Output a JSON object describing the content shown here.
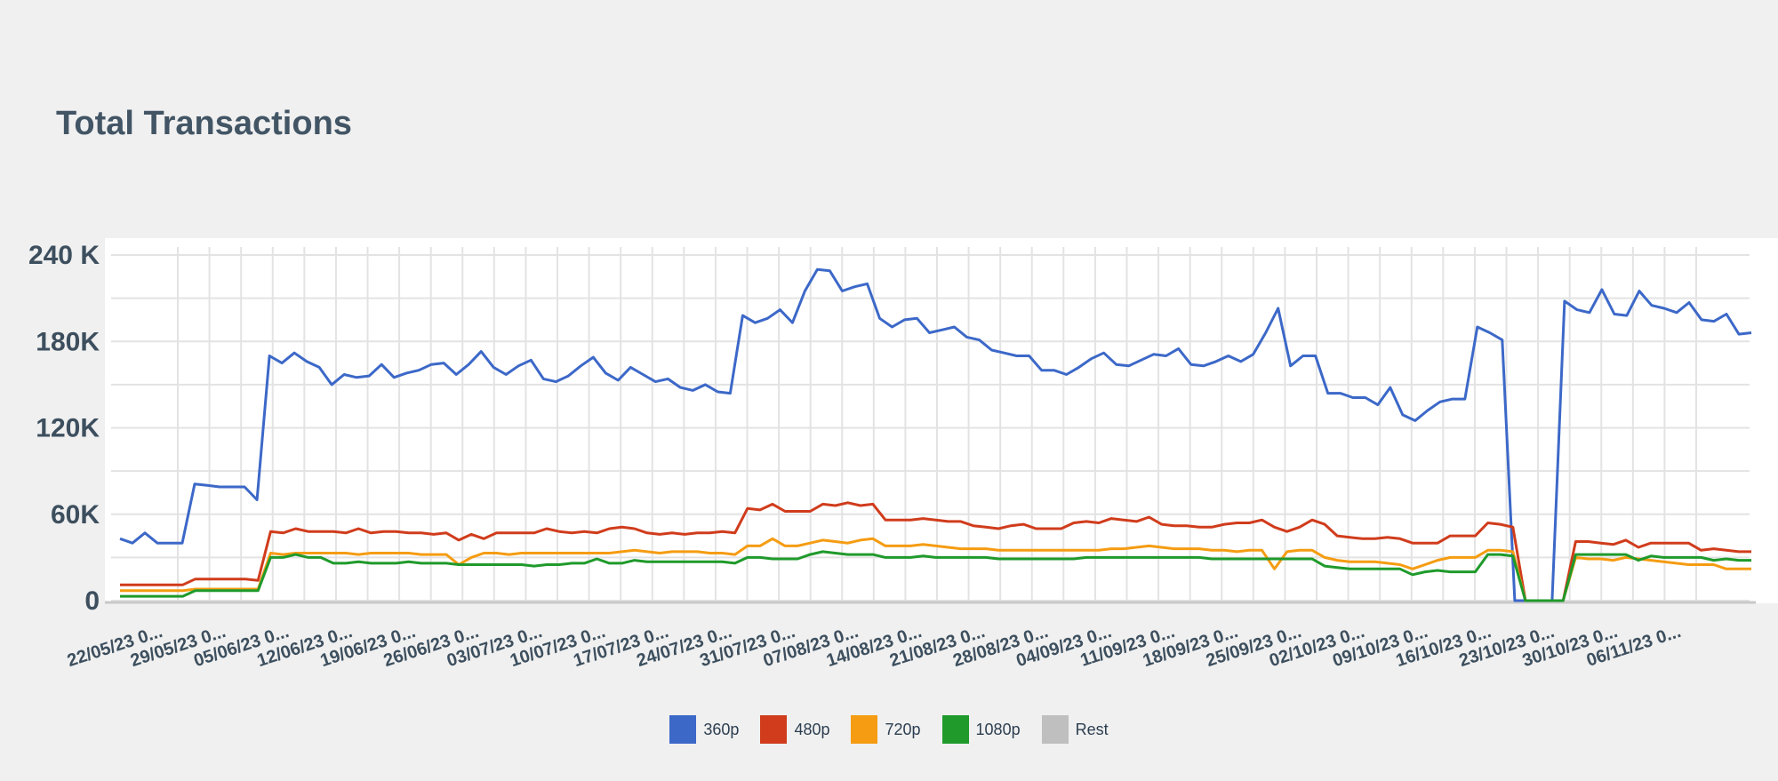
{
  "chart_data": {
    "type": "line",
    "title": "Total Transactions",
    "xlabel": "",
    "ylabel": "",
    "ylim": [
      0,
      240000
    ],
    "y_tick_labels": [
      "240 K",
      "180K",
      "120K",
      "60K",
      "0"
    ],
    "y_tick_values": [
      240000,
      180000,
      120000,
      60000,
      0
    ],
    "x_tick_labels": [
      "22/05/23 0...",
      "29/05/23 0...",
      "05/06/23 0...",
      "12/06/23 0...",
      "19/06/23 0...",
      "26/06/23 0...",
      "03/07/23 0...",
      "10/07/23 0...",
      "17/07/23 0...",
      "24/07/23 0...",
      "31/07/23 0...",
      "07/08/23 0...",
      "14/08/23 0...",
      "21/08/23 0...",
      "28/08/23 0...",
      "04/09/23 0...",
      "11/09/23 0...",
      "18/09/23 0...",
      "25/09/23 0...",
      "02/10/23 0...",
      "09/10/23 0...",
      "16/10/23 0...",
      "23/10/23 0...",
      "30/10/23 0...",
      "06/11/23 0..."
    ],
    "grid": true,
    "legend_position": "bottom",
    "series": [
      {
        "name": "360p",
        "color": "#3c68c8",
        "values": [
          43000,
          40000,
          47000,
          40000,
          40000,
          40000,
          81000,
          80000,
          79000,
          79000,
          79000,
          70000,
          170000,
          165000,
          172000,
          166000,
          162000,
          150000,
          157000,
          155000,
          156000,
          164000,
          155000,
          158000,
          160000,
          164000,
          165000,
          157000,
          164000,
          173000,
          162000,
          157000,
          163000,
          167000,
          154000,
          152000,
          156000,
          163000,
          169000,
          158000,
          153000,
          162000,
          157000,
          152000,
          154000,
          148000,
          146000,
          150000,
          145000,
          144000,
          198000,
          193000,
          196000,
          202000,
          193000,
          215000,
          230000,
          229000,
          215000,
          218000,
          220000,
          196000,
          190000,
          195000,
          196000,
          186000,
          188000,
          190000,
          183000,
          181000,
          174000,
          172000,
          170000,
          170000,
          160000,
          160000,
          157000,
          162000,
          168000,
          172000,
          164000,
          163000,
          167000,
          171000,
          170000,
          175000,
          164000,
          163000,
          166000,
          170000,
          166000,
          171000,
          186000,
          203000,
          163000,
          170000,
          170000,
          144000,
          144000,
          141000,
          141000,
          136000,
          148000,
          129000,
          125000,
          132000,
          138000,
          140000,
          140000,
          190000,
          186000,
          181000,
          0,
          0,
          0,
          0,
          208000,
          202000,
          200000,
          216000,
          199000,
          198000,
          215000,
          205000,
          203000,
          200000,
          207000,
          195000,
          194000,
          199000,
          185000,
          186000
        ]
      },
      {
        "name": "480p",
        "color": "#d03c1c",
        "values": [
          11000,
          11000,
          11000,
          11000,
          11000,
          11000,
          15000,
          15000,
          15000,
          15000,
          15000,
          14000,
          48000,
          47000,
          50000,
          48000,
          48000,
          48000,
          47000,
          50000,
          47000,
          48000,
          48000,
          47000,
          47000,
          46000,
          47000,
          42000,
          46000,
          43000,
          47000,
          47000,
          47000,
          47000,
          50000,
          48000,
          47000,
          48000,
          47000,
          50000,
          51000,
          50000,
          47000,
          46000,
          47000,
          46000,
          47000,
          47000,
          48000,
          47000,
          64000,
          63000,
          67000,
          62000,
          62000,
          62000,
          67000,
          66000,
          68000,
          66000,
          67000,
          56000,
          56000,
          56000,
          57000,
          56000,
          55000,
          55000,
          52000,
          51000,
          50000,
          52000,
          53000,
          50000,
          50000,
          50000,
          54000,
          55000,
          54000,
          57000,
          56000,
          55000,
          58000,
          53000,
          52000,
          52000,
          51000,
          51000,
          53000,
          54000,
          54000,
          56000,
          51000,
          48000,
          51000,
          56000,
          53000,
          45000,
          44000,
          43000,
          43000,
          44000,
          43000,
          40000,
          40000,
          40000,
          45000,
          45000,
          45000,
          54000,
          53000,
          51000,
          0,
          0,
          0,
          0,
          41000,
          41000,
          40000,
          39000,
          42000,
          37000,
          40000,
          40000,
          40000,
          40000,
          35000,
          36000,
          35000,
          34000,
          34000
        ]
      },
      {
        "name": "720p",
        "color": "#f59c12",
        "values": [
          7000,
          7000,
          7000,
          7000,
          7000,
          7000,
          8000,
          8000,
          8000,
          8000,
          8000,
          8000,
          33000,
          32000,
          33000,
          33000,
          33000,
          33000,
          33000,
          32000,
          33000,
          33000,
          33000,
          33000,
          32000,
          32000,
          32000,
          25000,
          30000,
          33000,
          33000,
          32000,
          33000,
          33000,
          33000,
          33000,
          33000,
          33000,
          33000,
          33000,
          34000,
          35000,
          34000,
          33000,
          34000,
          34000,
          34000,
          33000,
          33000,
          32000,
          38000,
          38000,
          43000,
          38000,
          38000,
          40000,
          42000,
          41000,
          40000,
          42000,
          43000,
          38000,
          38000,
          38000,
          39000,
          38000,
          37000,
          36000,
          36000,
          36000,
          35000,
          35000,
          35000,
          35000,
          35000,
          35000,
          35000,
          35000,
          35000,
          36000,
          36000,
          37000,
          38000,
          37000,
          36000,
          36000,
          36000,
          35000,
          35000,
          34000,
          35000,
          35000,
          22000,
          34000,
          35000,
          35000,
          30000,
          28000,
          27000,
          27000,
          27000,
          26000,
          25000,
          22000,
          25000,
          28000,
          30000,
          30000,
          30000,
          35000,
          35000,
          34000,
          0,
          0,
          0,
          0,
          30000,
          29000,
          29000,
          28000,
          30000,
          29000,
          28000,
          27000,
          26000,
          25000,
          25000,
          25000,
          22000,
          22000,
          22000
        ]
      },
      {
        "name": "1080p",
        "color": "#1f9a2b",
        "values": [
          3000,
          3000,
          3000,
          3000,
          3000,
          3000,
          7000,
          7000,
          7000,
          7000,
          7000,
          7000,
          30000,
          30000,
          32000,
          30000,
          30000,
          26000,
          26000,
          27000,
          26000,
          26000,
          26000,
          27000,
          26000,
          26000,
          26000,
          25000,
          25000,
          25000,
          25000,
          25000,
          25000,
          24000,
          25000,
          25000,
          26000,
          26000,
          29000,
          26000,
          26000,
          28000,
          27000,
          27000,
          27000,
          27000,
          27000,
          27000,
          27000,
          26000,
          30000,
          30000,
          29000,
          29000,
          29000,
          32000,
          34000,
          33000,
          32000,
          32000,
          32000,
          30000,
          30000,
          30000,
          31000,
          30000,
          30000,
          30000,
          30000,
          30000,
          29000,
          29000,
          29000,
          29000,
          29000,
          29000,
          29000,
          30000,
          30000,
          30000,
          30000,
          30000,
          30000,
          30000,
          30000,
          30000,
          30000,
          29000,
          29000,
          29000,
          29000,
          29000,
          29000,
          29000,
          29000,
          29000,
          24000,
          23000,
          22000,
          22000,
          22000,
          22000,
          22000,
          18000,
          20000,
          21000,
          20000,
          20000,
          20000,
          32000,
          32000,
          31000,
          0,
          0,
          0,
          0,
          32000,
          32000,
          32000,
          32000,
          32000,
          28000,
          31000,
          30000,
          30000,
          30000,
          30000,
          28000,
          29000,
          28000,
          28000
        ]
      },
      {
        "name": "Rest",
        "color": "#bfbfbf",
        "values": []
      }
    ]
  }
}
